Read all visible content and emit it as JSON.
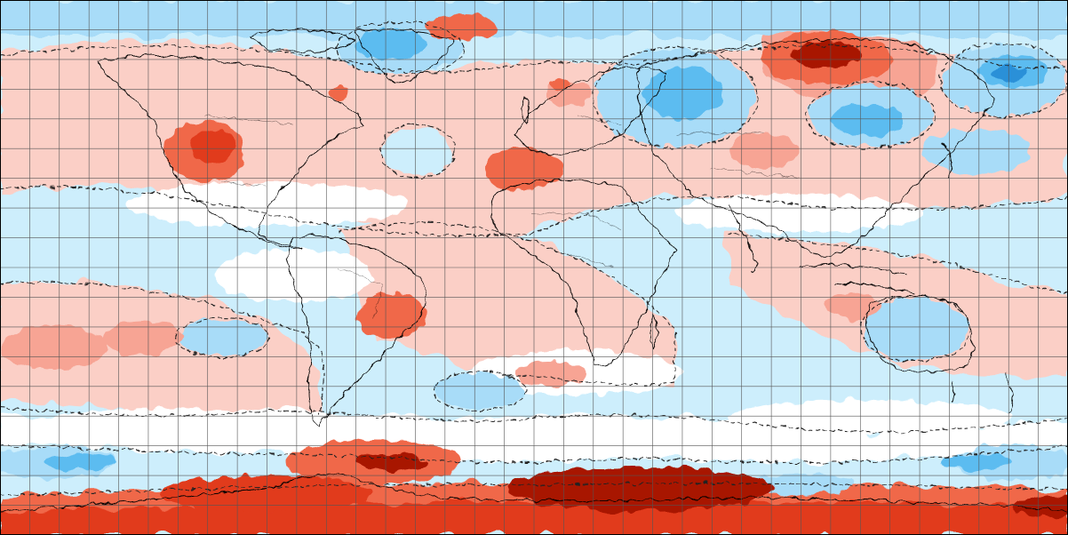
{
  "map": {
    "projection": "equirectangular",
    "colors": {
      "neutral": "#ffffff",
      "warm_1": "#fbcfc6",
      "warm_2": "#f7a494",
      "warm_3": "#f0684a",
      "warm_4": "#e13a1e",
      "warm_5": "#a81400",
      "cool_1": "#cdeefc",
      "cool_2": "#a8dcf8",
      "cool_3": "#5cbcf0",
      "cool_4": "#2a90d8",
      "cool_5": "#1060a8",
      "grid": "#555555",
      "coast": "#000000",
      "border": "#000000"
    },
    "grid": {
      "lon_step_deg": 10,
      "lat_step_deg": 10
    }
  }
}
